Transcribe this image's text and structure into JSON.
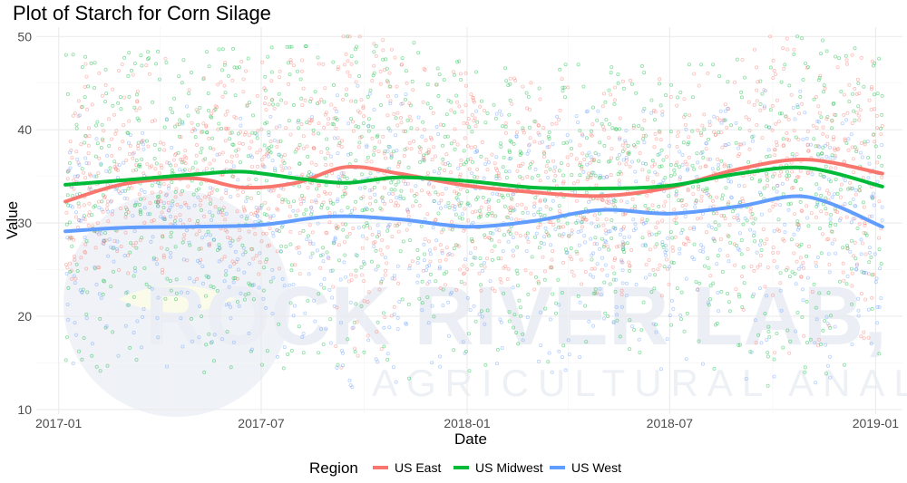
{
  "chart_data": {
    "type": "scatter",
    "title": "Plot of Starch for Corn Silage",
    "xlabel": "Date",
    "ylabel": "Value",
    "xlim": [
      "2016-12-12",
      "2019-01-25"
    ],
    "ylim": [
      9.5,
      51
    ],
    "x_ticks": [
      "2017-01-01",
      "2017-07-01",
      "2018-01-01",
      "2018-07-01",
      "2019-01-01"
    ],
    "x_tick_labels": [
      "2017-01",
      "2017-07",
      "2018-01",
      "2018-07",
      "2019-01"
    ],
    "y_ticks": [
      10,
      20,
      30,
      40,
      50
    ],
    "grid": true,
    "legend": {
      "title": "Region",
      "position": "bottom"
    },
    "series": [
      {
        "name": "US East",
        "color": "#F8766D",
        "trend": [
          [
            "2017-01-07",
            32.3
          ],
          [
            "2017-03-01",
            34.2
          ],
          [
            "2017-05-01",
            34.8
          ],
          [
            "2017-06-15",
            33.8
          ],
          [
            "2017-08-01",
            34.3
          ],
          [
            "2017-09-15",
            36.0
          ],
          [
            "2017-11-01",
            35.3
          ],
          [
            "2018-01-01",
            34.0
          ],
          [
            "2018-03-01",
            33.3
          ],
          [
            "2018-05-01",
            32.9
          ],
          [
            "2018-07-01",
            33.8
          ],
          [
            "2018-09-01",
            35.8
          ],
          [
            "2018-11-01",
            36.8
          ],
          [
            "2019-01-07",
            35.3
          ]
        ],
        "scatter_band": [
          [
            "2017-01-01",
            24,
            48
          ],
          [
            "2017-08-20",
            24,
            48
          ],
          [
            "2017-09-10",
            14,
            50
          ],
          [
            "2017-10-20",
            16,
            50
          ],
          [
            "2017-11-01",
            23,
            47
          ],
          [
            "2018-08-20",
            22,
            46
          ],
          [
            "2018-09-10",
            16,
            50
          ],
          [
            "2018-10-20",
            16,
            50
          ],
          [
            "2019-01-07",
            18,
            47
          ]
        ]
      },
      {
        "name": "US Midwest",
        "color": "#00BA38",
        "trend": [
          [
            "2017-01-07",
            34.1
          ],
          [
            "2017-03-01",
            34.6
          ],
          [
            "2017-05-01",
            35.2
          ],
          [
            "2017-06-15",
            35.5
          ],
          [
            "2017-08-01",
            34.8
          ],
          [
            "2017-09-15",
            34.3
          ],
          [
            "2017-11-01",
            34.9
          ],
          [
            "2018-01-01",
            34.5
          ],
          [
            "2018-03-01",
            33.8
          ],
          [
            "2018-05-01",
            33.7
          ],
          [
            "2018-07-01",
            34.0
          ],
          [
            "2018-09-01",
            35.3
          ],
          [
            "2018-11-01",
            35.9
          ],
          [
            "2019-01-07",
            33.9
          ]
        ],
        "scatter_band": [
          [
            "2017-01-01",
            13,
            48
          ],
          [
            "2017-08-20",
            13,
            49
          ],
          [
            "2017-09-10",
            11,
            50
          ],
          [
            "2017-11-01",
            12,
            50
          ],
          [
            "2018-01-01",
            14,
            47
          ],
          [
            "2018-08-20",
            14,
            47
          ],
          [
            "2018-09-10",
            12,
            50
          ],
          [
            "2018-11-01",
            13,
            50
          ],
          [
            "2019-01-07",
            16,
            48
          ]
        ]
      },
      {
        "name": "US West",
        "color": "#619CFF",
        "trend": [
          [
            "2017-01-07",
            29.1
          ],
          [
            "2017-03-01",
            29.5
          ],
          [
            "2017-05-01",
            29.6
          ],
          [
            "2017-07-01",
            29.8
          ],
          [
            "2017-09-01",
            30.7
          ],
          [
            "2017-11-01",
            30.4
          ],
          [
            "2018-01-01",
            29.6
          ],
          [
            "2018-03-01",
            30.2
          ],
          [
            "2018-05-01",
            31.4
          ],
          [
            "2018-07-01",
            31.0
          ],
          [
            "2018-09-01",
            31.8
          ],
          [
            "2018-11-01",
            32.8
          ],
          [
            "2019-01-07",
            29.6
          ]
        ],
        "scatter_band": [
          [
            "2017-01-01",
            15,
            42
          ],
          [
            "2017-08-20",
            14,
            43
          ],
          [
            "2017-09-10",
            11,
            45
          ],
          [
            "2017-11-01",
            12,
            44
          ],
          [
            "2018-01-01",
            14,
            42
          ],
          [
            "2018-08-20",
            14,
            42
          ],
          [
            "2018-09-10",
            12,
            45
          ],
          [
            "2018-11-01",
            12,
            44
          ],
          [
            "2019-01-07",
            14,
            40
          ]
        ]
      }
    ]
  },
  "watermark": {
    "main": "ROCK RIVER LAB, INC.",
    "sub": "AGRICULTURAL ANALYSIS"
  }
}
